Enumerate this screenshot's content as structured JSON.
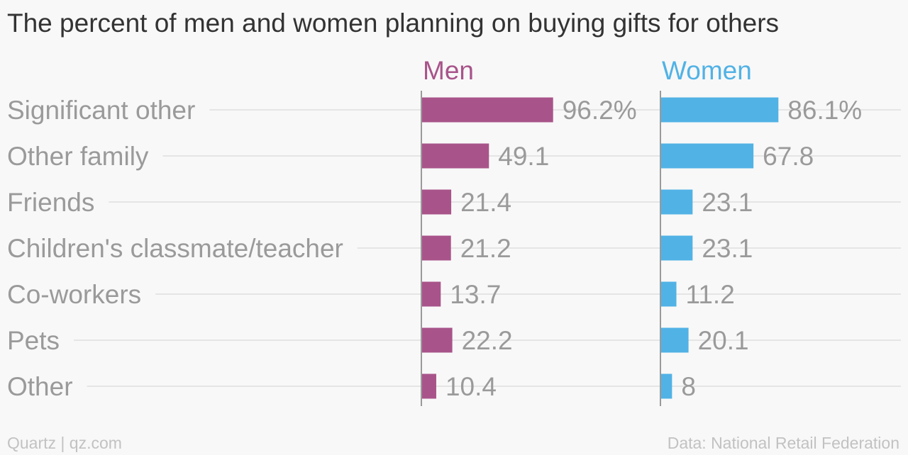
{
  "chart_data": {
    "type": "bar",
    "title": "The percent of men and women planning on buying gifts for others",
    "categories": [
      "Significant other",
      "Other family",
      "Friends",
      "Children's classmate/teacher",
      "Co-workers",
      "Pets",
      "Other"
    ],
    "series": [
      {
        "name": "Men",
        "color": "#a8548a",
        "values": [
          96.2,
          49.1,
          21.4,
          21.2,
          13.7,
          22.2,
          10.4
        ],
        "labels": [
          "96.2%",
          "49.1",
          "21.4",
          "21.2",
          "13.7",
          "22.2",
          "10.4"
        ]
      },
      {
        "name": "Women",
        "color": "#51b2e5",
        "values": [
          86.1,
          67.8,
          23.1,
          23.1,
          11.2,
          20.1,
          8
        ],
        "labels": [
          "86.1%",
          "67.8",
          "23.1",
          "23.1",
          "11.2",
          "20.1",
          "8"
        ]
      }
    ],
    "orientation": "horizontal",
    "layout": "small-multiples"
  },
  "footer": {
    "source_left": "Quartz | qz.com",
    "source_right": "Data: National Retail Federation"
  }
}
